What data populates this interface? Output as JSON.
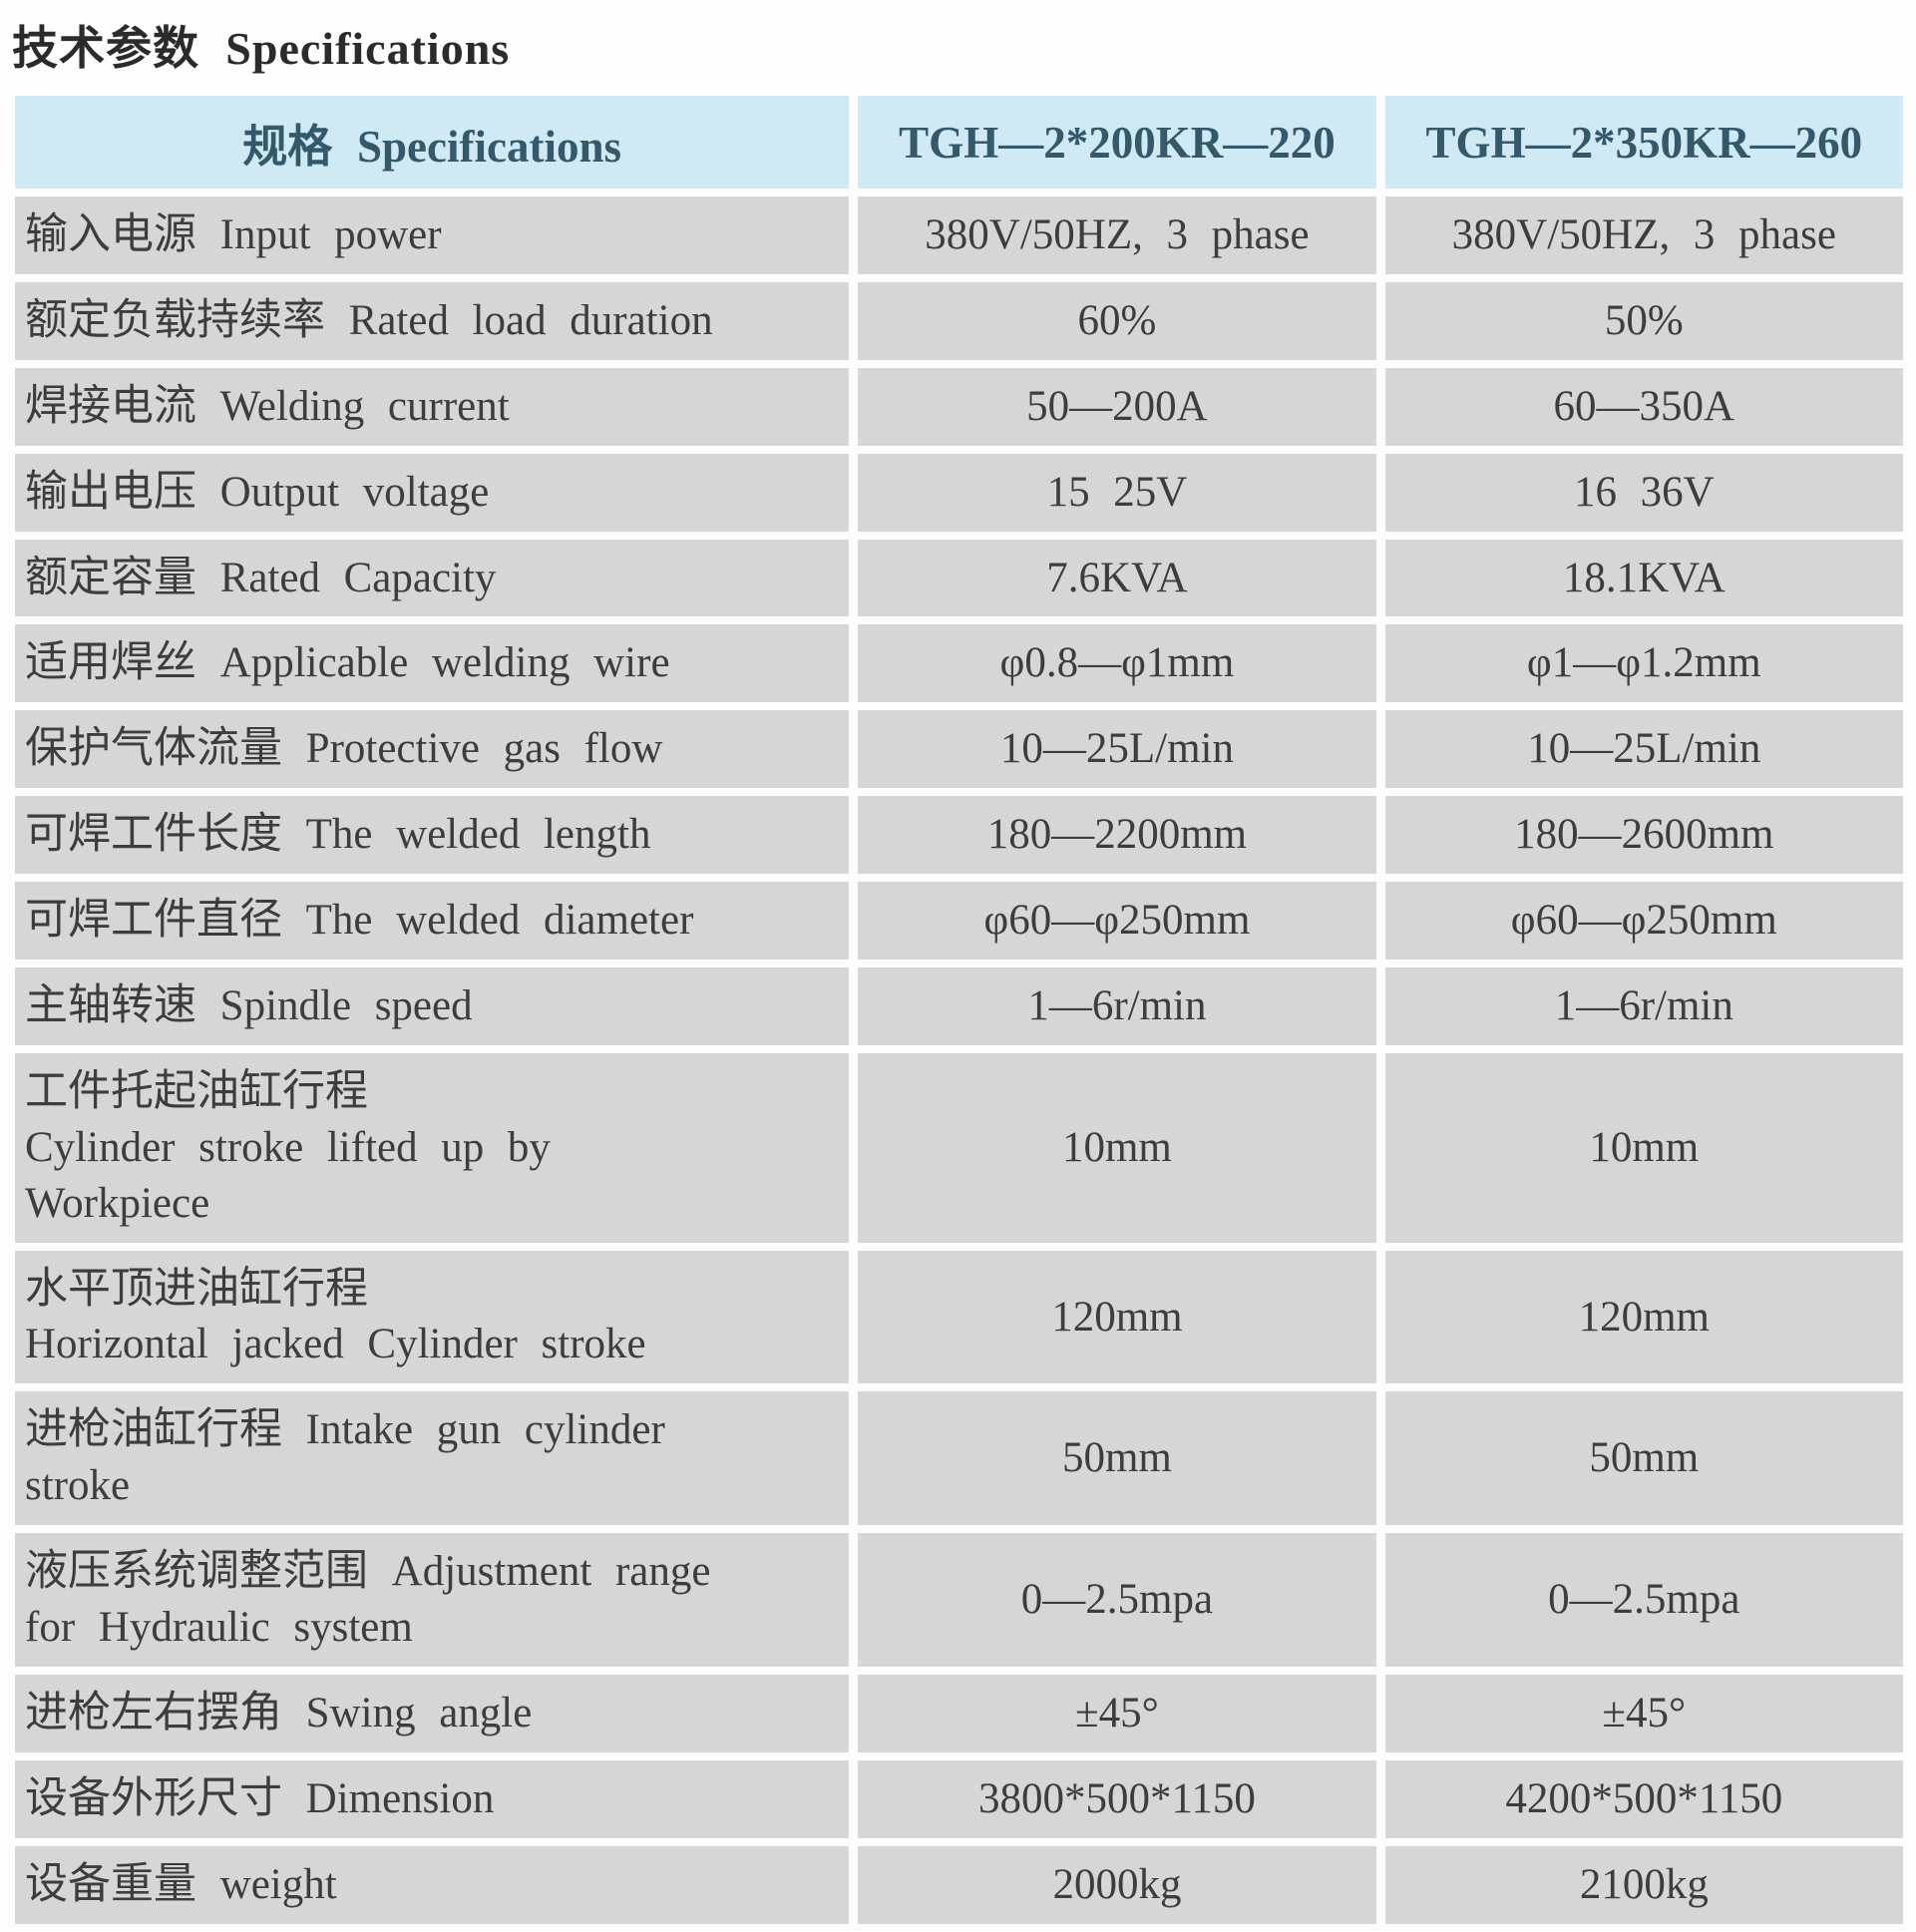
{
  "title": "技术参数 Specifications",
  "colors": {
    "header_background": "#cfe9f5",
    "header_text": "#33596b",
    "cell_background": "#d6d6d6",
    "cell_text": "#3d3d3d",
    "title_text": "#2b2b2b",
    "page_background": "#fdfdfd"
  },
  "table": {
    "header": [
      "规格 Specifications",
      "TGH—2*200KR—220",
      "TGH—2*350KR—260"
    ],
    "rows": [
      {
        "label": "输入电源 Input power",
        "v1": "380V/50HZ, 3 phase",
        "v2": "380V/50HZ, 3 phase"
      },
      {
        "label": "额定负载持续率 Rated load duration",
        "v1": "60%",
        "v2": "50%"
      },
      {
        "label": "焊接电流 Welding current",
        "v1": "50—200A",
        "v2": "60—350A"
      },
      {
        "label": "输出电压 Output voltage",
        "v1": "15 25V",
        "v2": "16 36V"
      },
      {
        "label": "额定容量 Rated Capacity",
        "v1": "7.6KVA",
        "v2": "18.1KVA"
      },
      {
        "label": "适用焊丝 Applicable welding wire",
        "v1": "φ0.8—φ1mm",
        "v2": "φ1—φ1.2mm"
      },
      {
        "label": "保护气体流量 Protective gas flow",
        "v1": "10—25L/min",
        "v2": "10—25L/min"
      },
      {
        "label": "可焊工件长度 The welded length",
        "v1": "180—2200mm",
        "v2": "180—2600mm"
      },
      {
        "label": "可焊工件直径 The welded diameter",
        "v1": "φ60—φ250mm",
        "v2": "φ60—φ250mm"
      },
      {
        "label": "主轴转速 Spindle speed",
        "v1": "1—6r/min",
        "v2": "1—6r/min"
      },
      {
        "label": "工件托起油缸行程\nCylinder stroke lifted up by\nWorkpiece",
        "v1": "10mm",
        "v2": "10mm"
      },
      {
        "label": "水平顶进油缸行程\n Horizontal jacked Cylinder stroke",
        "v1": "120mm",
        "v2": "120mm"
      },
      {
        "label": "进枪油缸行程 Intake gun cylinder\nstroke",
        "v1": "50mm",
        "v2": "50mm"
      },
      {
        "label": "液压系统调整范围 Adjustment range\nfor Hydraulic system",
        "v1": "0—2.5mpa",
        "v2": "0—2.5mpa"
      },
      {
        "label": "进枪左右摆角 Swing angle",
        "v1": "±45°",
        "v2": "±45°"
      },
      {
        "label": "设备外形尺寸 Dimension",
        "v1": "3800*500*1150",
        "v2": "4200*500*1150"
      },
      {
        "label": "设备重量 weight",
        "v1": "2000kg",
        "v2": "2100kg"
      }
    ]
  }
}
